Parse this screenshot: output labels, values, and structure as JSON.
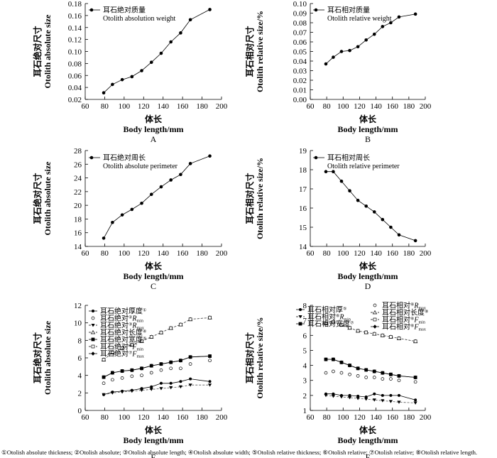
{
  "chart_data": [
    {
      "id": "A",
      "type": "line",
      "panel_label": "A",
      "xlabel_cn": "体长",
      "xlabel": "Body length/mm",
      "ylabel_cn": "耳石绝对尺寸",
      "ylabel": "Otolith absolute size",
      "xlim": [
        60,
        200
      ],
      "ylim": [
        0.02,
        0.18
      ],
      "xticks": [
        60,
        80,
        100,
        120,
        140,
        160,
        180,
        200
      ],
      "yticks": [
        0.02,
        0.04,
        0.06,
        0.08,
        0.1,
        0.12,
        0.14,
        0.16,
        0.18
      ],
      "ytick_labels": [
        "0.02",
        "0.04",
        "0.06",
        "0.08",
        "0.10",
        "0.12",
        "0.14",
        "0.16",
        "0.18"
      ],
      "legend": [
        "耳石绝对质量",
        "Otolith absolution weight"
      ],
      "series": [
        {
          "name": "耳石绝对质量",
          "marker": "filled-circle",
          "dash": "solid",
          "x": [
            79,
            88,
            98,
            108,
            118,
            128,
            138,
            148,
            158,
            168,
            188
          ],
          "y": [
            0.031,
            0.045,
            0.053,
            0.058,
            0.068,
            0.082,
            0.097,
            0.116,
            0.131,
            0.153,
            0.17
          ]
        }
      ]
    },
    {
      "id": "B",
      "type": "line",
      "panel_label": "B",
      "xlabel_cn": "体长",
      "xlabel": "Body length/mm",
      "ylabel_cn": "耳石相对尺寸",
      "ylabel": "Otolith relative size/%",
      "xlim": [
        60,
        200
      ],
      "ylim": [
        0.0,
        0.1
      ],
      "xticks": [
        60,
        80,
        100,
        120,
        140,
        160,
        180,
        200
      ],
      "yticks": [
        0.0,
        0.01,
        0.02,
        0.03,
        0.04,
        0.05,
        0.06,
        0.07,
        0.08,
        0.09,
        0.1
      ],
      "ytick_labels": [
        "0.00",
        "0.01",
        "0.02",
        "0.03",
        "0.04",
        "0.05",
        "0.06",
        "0.07",
        "0.08",
        "0.09",
        "0.10"
      ],
      "legend": [
        "耳石相对质量",
        "Otolith relative weight"
      ],
      "series": [
        {
          "name": "耳石相对质量",
          "marker": "filled-circle",
          "dash": "solid",
          "x": [
            79,
            88,
            98,
            108,
            118,
            128,
            138,
            148,
            158,
            168,
            188
          ],
          "y": [
            0.037,
            0.044,
            0.05,
            0.051,
            0.055,
            0.062,
            0.068,
            0.076,
            0.08,
            0.086,
            0.089
          ]
        }
      ]
    },
    {
      "id": "C",
      "type": "line",
      "panel_label": "C",
      "xlabel_cn": "体长",
      "xlabel": "Body length/mm",
      "ylabel_cn": "耳石绝对尺寸",
      "ylabel": "Otolith absolute size",
      "xlim": [
        60,
        200
      ],
      "ylim": [
        14,
        28
      ],
      "xticks": [
        60,
        80,
        100,
        120,
        140,
        160,
        180,
        200
      ],
      "yticks": [
        14,
        16,
        18,
        20,
        22,
        24,
        26,
        28
      ],
      "ytick_labels": [
        "14",
        "16",
        "18",
        "20",
        "22",
        "24",
        "26",
        "28"
      ],
      "legend": [
        "耳石绝对周长",
        "Otolith absolute perimeter"
      ],
      "series": [
        {
          "name": "耳石绝对周长",
          "marker": "filled-circle",
          "dash": "solid",
          "x": [
            79,
            88,
            98,
            108,
            118,
            128,
            138,
            148,
            158,
            168,
            188
          ],
          "y": [
            15.2,
            17.5,
            18.6,
            19.4,
            20.3,
            21.6,
            22.7,
            23.7,
            24.5,
            26.1,
            27.2
          ]
        }
      ]
    },
    {
      "id": "D",
      "type": "line",
      "panel_label": "D",
      "xlabel_cn": "体长",
      "xlabel": "Body length/mm",
      "ylabel_cn": "耳石相对尺寸",
      "ylabel": "Otolith relative size/%",
      "xlim": [
        60,
        200
      ],
      "ylim": [
        14,
        19
      ],
      "xticks": [
        60,
        80,
        100,
        120,
        140,
        160,
        180,
        200
      ],
      "yticks": [
        14,
        15,
        16,
        17,
        18,
        19
      ],
      "ytick_labels": [
        "14",
        "15",
        "16",
        "17",
        "18",
        "19"
      ],
      "legend": [
        "耳石相对周长",
        "Otolith relative perimeter"
      ],
      "series": [
        {
          "name": "耳石相对周长",
          "marker": "filled-circle",
          "dash": "solid",
          "x": [
            79,
            88,
            98,
            108,
            118,
            128,
            138,
            148,
            158,
            168,
            188
          ],
          "y": [
            17.9,
            17.9,
            17.4,
            16.9,
            16.4,
            16.1,
            15.8,
            15.4,
            15.0,
            14.6,
            14.3
          ]
        }
      ]
    },
    {
      "id": "E",
      "type": "line",
      "panel_label": "E",
      "xlabel_cn": "体长",
      "xlabel": "Body length/mm",
      "ylabel_cn": "耳石绝对尺寸",
      "ylabel": "Otolith absolute size",
      "xlim": [
        60,
        200
      ],
      "ylim": [
        0,
        12
      ],
      "xticks": [
        60,
        80,
        100,
        120,
        140,
        160,
        180,
        200
      ],
      "yticks": [
        0,
        2,
        4,
        6,
        8,
        10,
        12
      ],
      "ytick_labels": [
        "0",
        "2",
        "4",
        "6",
        "8",
        "10",
        "12"
      ],
      "legend": [
        "耳石绝对厚度①",
        "耳石绝对②Rmin",
        "耳石绝对③Rmax",
        "耳石绝对长度④",
        "耳石绝对宽度⑤",
        "耳石绝对⑥Fmin",
        "耳石绝对⑦Fmax"
      ],
      "series": [
        {
          "name": "耳石绝对厚度①",
          "marker": "filled-circle-small",
          "dash": "solid",
          "x": [
            79,
            88,
            98,
            108,
            118,
            128,
            138,
            148,
            158,
            168,
            188
          ],
          "y": [
            1.8,
            2.1,
            2.2,
            2.3,
            2.5,
            2.7,
            3.1,
            3.1,
            3.3,
            3.6,
            3.3
          ]
        },
        {
          "name": "耳石绝对②Rmin",
          "marker": "open-circle",
          "dash": "none",
          "x": [
            79,
            88,
            98,
            108,
            118,
            128,
            138,
            148,
            158,
            168,
            188
          ],
          "y": [
            3.1,
            3.5,
            3.7,
            3.9,
            4.0,
            4.3,
            4.6,
            4.8,
            4.8,
            5.3,
            5.7
          ]
        },
        {
          "name": "耳石绝对③Rmax",
          "marker": "filled-triangle-down",
          "dash": "dashed",
          "x": [
            79,
            88,
            98,
            108,
            118,
            128,
            138,
            148,
            158,
            168,
            188
          ],
          "y": [
            1.8,
            2.0,
            2.1,
            2.2,
            2.3,
            2.4,
            2.5,
            2.6,
            2.7,
            2.9,
            2.9
          ]
        },
        {
          "name": "耳石绝对长度④",
          "marker": "open-triangle-up",
          "dash": "dashed",
          "x": [
            79,
            88,
            98,
            108,
            118,
            128,
            138,
            148,
            158,
            168,
            188
          ],
          "y": [
            5.8,
            6.6,
            7.1,
            7.5,
            7.9,
            8.4,
            8.9,
            9.4,
            9.8,
            10.4,
            10.6
          ]
        },
        {
          "name": "耳石绝对宽度⑤",
          "marker": "filled-square",
          "dash": "solid",
          "x": [
            79,
            88,
            98,
            108,
            118,
            128,
            138,
            148,
            158,
            168,
            188
          ],
          "y": [
            3.8,
            4.3,
            4.5,
            4.6,
            4.8,
            5.1,
            5.3,
            5.5,
            5.7,
            6.1,
            6.2
          ]
        },
        {
          "name": "耳石绝对⑥Fmin",
          "marker": "open-square",
          "dash": "dashed",
          "x": [
            79,
            88,
            98,
            108,
            118,
            128,
            138,
            148,
            158,
            168,
            188
          ],
          "y": [
            5.8,
            6.6,
            7.1,
            7.5,
            7.9,
            8.4,
            8.9,
            9.4,
            9.8,
            10.4,
            10.6
          ]
        },
        {
          "name": "耳石绝对⑦Fmax",
          "marker": "filled-diamond",
          "dash": "solid",
          "x": [
            79,
            88,
            98,
            108,
            118,
            128,
            138,
            148,
            158,
            168,
            188
          ],
          "y": [
            3.8,
            4.3,
            4.5,
            4.6,
            4.8,
            5.1,
            5.3,
            5.5,
            5.7,
            6.1,
            6.2
          ]
        }
      ]
    },
    {
      "id": "F",
      "type": "line",
      "panel_label": "F",
      "xlabel_cn": "体长",
      "xlabel": "Body length/mm",
      "ylabel_cn": "耳石相对尺寸",
      "ylabel": "Otolith relative size/%",
      "xlim": [
        60,
        200
      ],
      "ylim": [
        1,
        8
      ],
      "xticks": [
        60,
        80,
        100,
        120,
        140,
        160,
        180,
        200
      ],
      "yticks": [
        1,
        2,
        3,
        4,
        5,
        6,
        7,
        8
      ],
      "ytick_labels": [
        "1",
        "2",
        "3",
        "4",
        "5",
        "6",
        "7",
        "8"
      ],
      "legend": [
        "耳石相对厚⑤",
        "耳石相对⑥Rmin",
        "耳石相对宽度⑦",
        "耳石相对⑥Rmax",
        "耳石相对长度⑧",
        "耳石相对⑥Fmin",
        "耳石相对⑥Fmax"
      ],
      "series": [
        {
          "name": "耳石相对厚⑤",
          "marker": "filled-circle-small",
          "dash": "solid",
          "x": [
            79,
            88,
            98,
            108,
            118,
            128,
            138,
            148,
            158,
            168,
            188
          ],
          "y": [
            2.1,
            2.1,
            2.0,
            2.0,
            1.95,
            1.9,
            2.1,
            2.0,
            2.0,
            2.0,
            1.7
          ]
        },
        {
          "name": "耳石相对⑥Rmin",
          "marker": "filled-triangle-down",
          "dash": "dashed",
          "x": [
            79,
            88,
            98,
            108,
            118,
            128,
            138,
            148,
            158,
            168,
            188
          ],
          "y": [
            2.0,
            1.95,
            1.9,
            1.85,
            1.8,
            1.75,
            1.7,
            1.65,
            1.6,
            1.55,
            1.5
          ]
        },
        {
          "name": "耳石相对宽度⑦",
          "marker": "filled-square",
          "dash": "solid",
          "x": [
            79,
            88,
            98,
            108,
            118,
            128,
            138,
            148,
            158,
            168,
            188
          ],
          "y": [
            4.4,
            4.4,
            4.2,
            4.0,
            3.8,
            3.7,
            3.6,
            3.5,
            3.4,
            3.3,
            3.2
          ]
        },
        {
          "name": "耳石相对⑥Rmax",
          "marker": "open-circle",
          "dash": "none",
          "x": [
            79,
            88,
            98,
            108,
            118,
            128,
            138,
            148,
            158,
            168,
            188
          ],
          "y": [
            3.5,
            3.6,
            3.5,
            3.4,
            3.3,
            3.2,
            3.2,
            3.1,
            3.1,
            3.0,
            2.9
          ]
        },
        {
          "name": "耳石相对长度⑧",
          "marker": "open-triangle-up",
          "dash": "dashed",
          "x": [
            79,
            88,
            98,
            108,
            118,
            128,
            138,
            148,
            158,
            168,
            188
          ],
          "y": [
            6.8,
            6.9,
            6.7,
            6.5,
            6.3,
            6.2,
            6.1,
            6.0,
            5.9,
            5.8,
            5.6
          ]
        },
        {
          "name": "耳石相对⑥Fmin",
          "marker": "open-square",
          "dash": "dashed",
          "x": [
            79,
            88,
            98,
            108,
            118,
            128,
            138,
            148,
            158,
            168,
            188
          ],
          "y": [
            6.8,
            6.9,
            6.7,
            6.5,
            6.3,
            6.2,
            6.1,
            6.0,
            5.9,
            5.8,
            5.6
          ]
        },
        {
          "name": "耳石相对⑥Fmax",
          "marker": "filled-diamond",
          "dash": "solid",
          "x": [
            79,
            88,
            98,
            108,
            118,
            128,
            138,
            148,
            158,
            168,
            188
          ],
          "y": [
            4.4,
            4.4,
            4.2,
            4.0,
            3.8,
            3.7,
            3.6,
            3.5,
            3.4,
            3.3,
            3.2
          ]
        }
      ]
    }
  ],
  "footnote": "①Otolish absolute thickness; ②Otolish absolute; ③Otolish absolute length; ④Otolish absolute width; ⑤Otolish relative thickness; ⑥Otolish relative; ⑦Otolish relative; ⑧Otolish relative length."
}
